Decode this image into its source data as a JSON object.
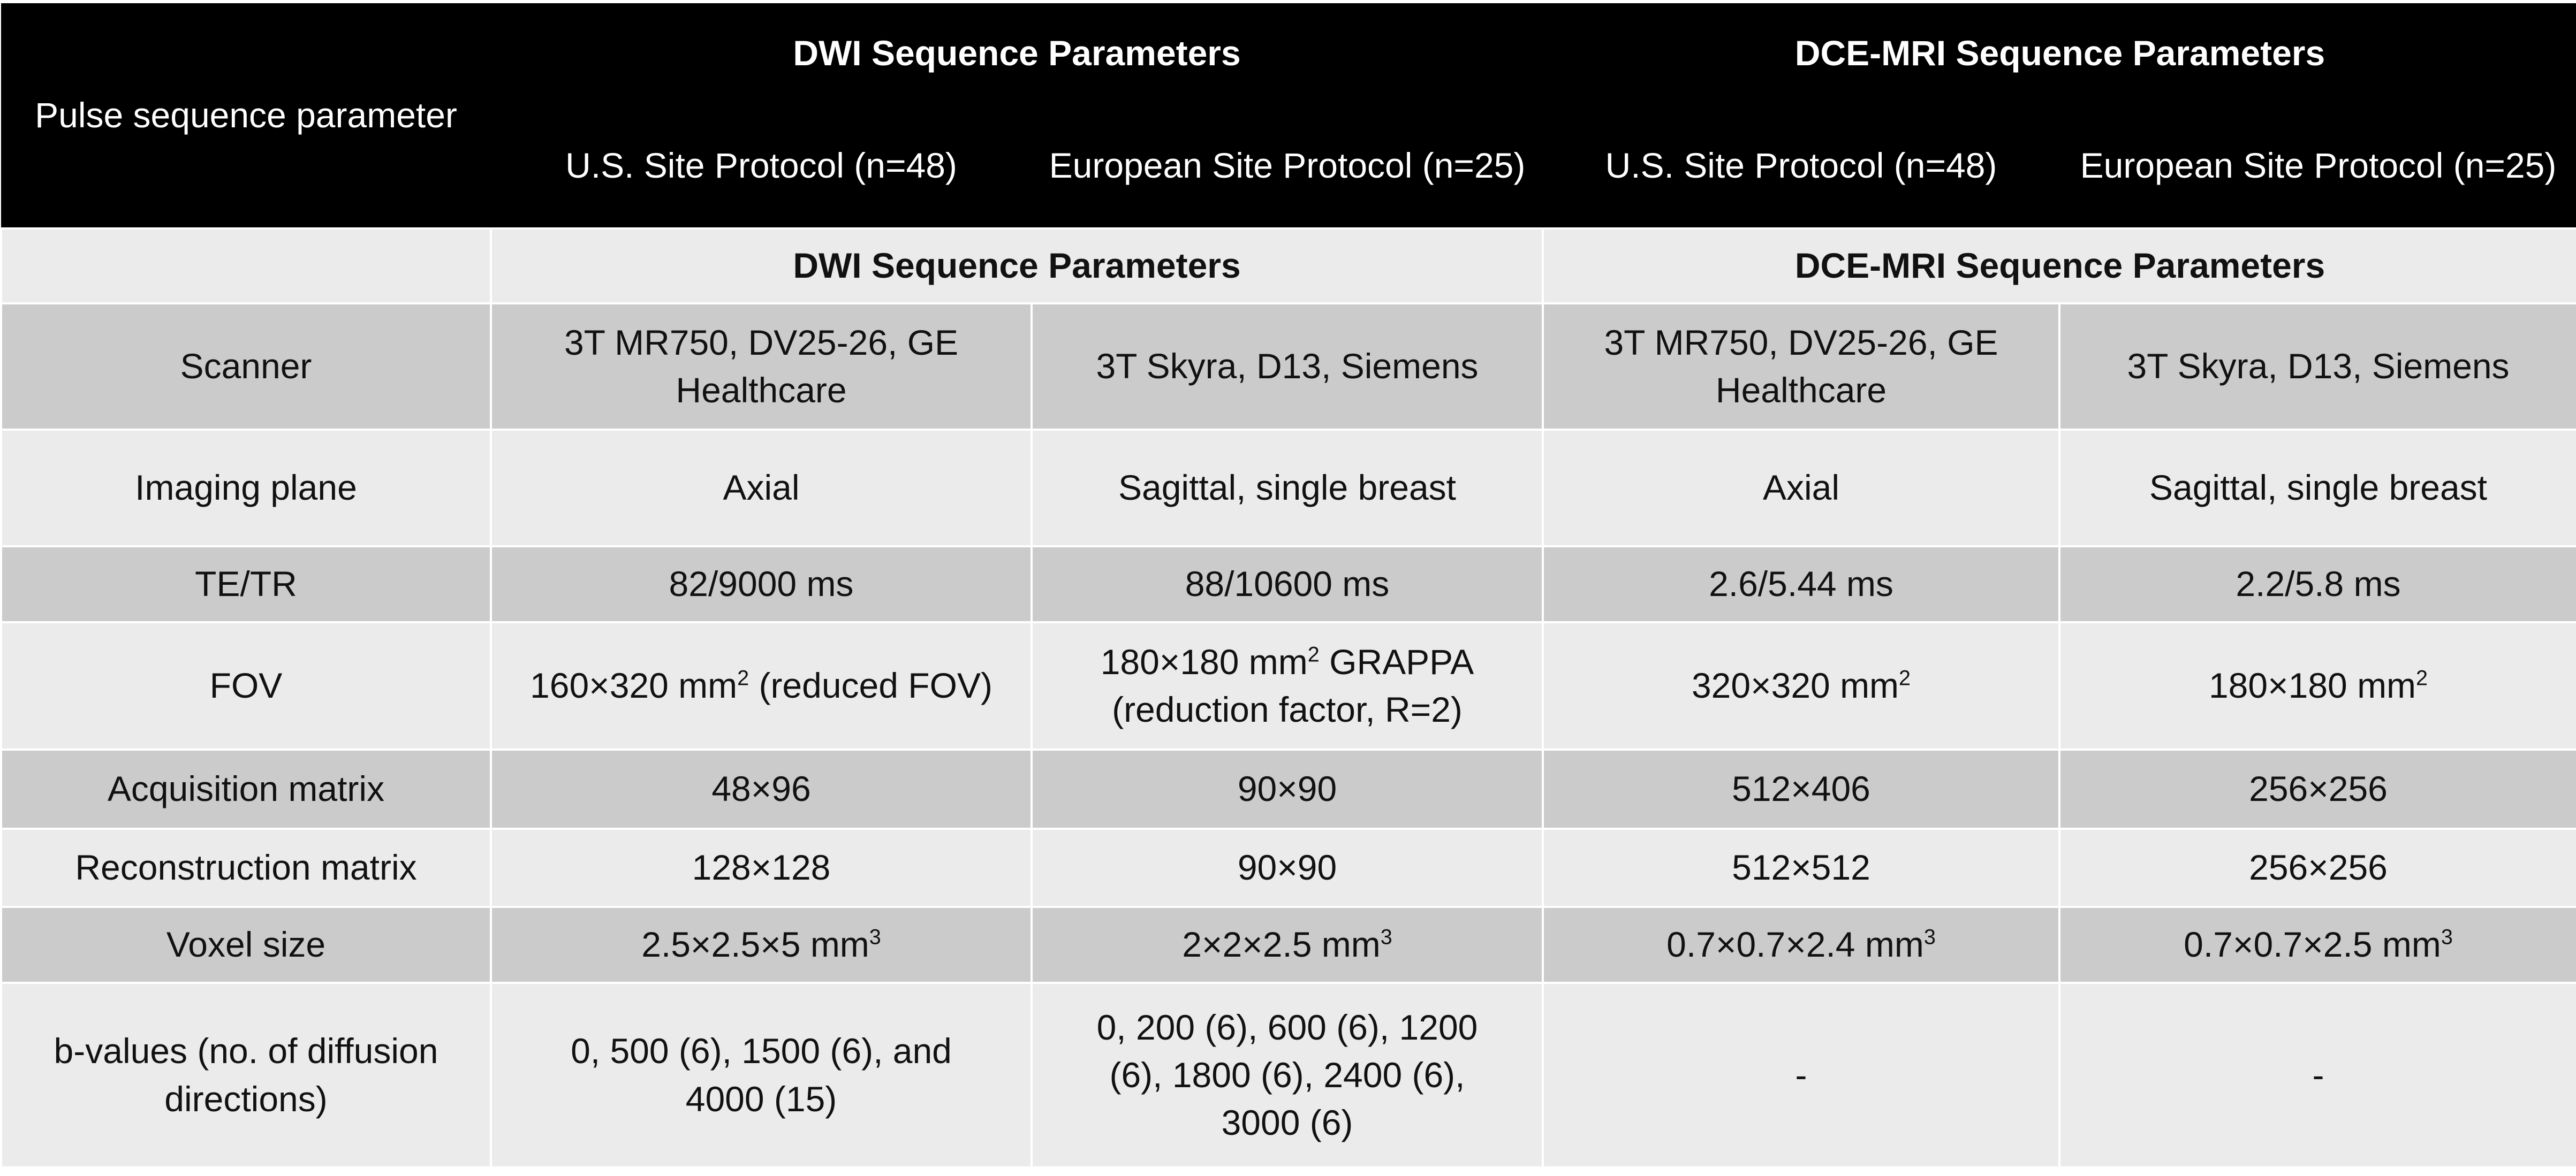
{
  "header": {
    "param_label": "Pulse sequence parameter",
    "dwi_title": "DWI Sequence Parameters",
    "dce_title": "DCE-MRI Sequence Parameters",
    "dwi_us": "U.S. Site Protocol (n=48)",
    "dwi_eu": "European Site Protocol (n=25)",
    "dce_us": "U.S. Site Protocol (n=48)",
    "dce_eu": "European Site Protocol (n=25)"
  },
  "subheader": {
    "dwi_title": "DWI Sequence Parameters",
    "dce_title": "DCE-MRI Sequence Parameters"
  },
  "rows": [
    {
      "param": "Scanner",
      "dwi_us": "3T MR750, DV25-26, GE Healthcare",
      "dwi_eu": "3T Skyra, D13, Siemens",
      "dce_us": "3T MR750, DV25-26, GE Healthcare",
      "dce_eu": "3T Skyra, D13, Siemens"
    },
    {
      "param": "Imaging plane",
      "dwi_us": "Axial",
      "dwi_eu": "Sagittal, single breast",
      "dce_us": "Axial",
      "dce_eu": "Sagittal, single breast"
    },
    {
      "param": "TE/TR",
      "dwi_us": "82/9000 ms",
      "dwi_eu": "88/10600 ms",
      "dce_us": "2.6/5.44 ms",
      "dce_eu": "2.2/5.8 ms"
    },
    {
      "param": "FOV",
      "dwi_us": {
        "pre": "160×320 mm",
        "sup": "2",
        "post": " (reduced FOV)"
      },
      "dwi_eu": {
        "pre": "180×180 mm",
        "sup": "2",
        "post": " GRAPPA (reduction factor, R=2)"
      },
      "dce_us": {
        "pre": "320×320 mm",
        "sup": "2"
      },
      "dce_eu": {
        "pre": "180×180 mm",
        "sup": "2"
      }
    },
    {
      "param": "Acquisition matrix",
      "dwi_us": "48×96",
      "dwi_eu": "90×90",
      "dce_us": "512×406",
      "dce_eu": "256×256"
    },
    {
      "param": "Reconstruction matrix",
      "dwi_us": "128×128",
      "dwi_eu": "90×90",
      "dce_us": "512×512",
      "dce_eu": "256×256"
    },
    {
      "param": "Voxel size",
      "dwi_us": {
        "pre": "2.5×2.5×5 mm",
        "sup": "3"
      },
      "dwi_eu": {
        "pre": "2×2×2.5 mm",
        "sup": "3"
      },
      "dce_us": {
        "pre": "0.7×0.7×2.4 mm",
        "sup": "3"
      },
      "dce_eu": {
        "pre": "0.7×0.7×2.5 mm",
        "sup": "3"
      }
    },
    {
      "param": "b-values (no. of diffusion directions)",
      "dwi_us": "0, 500 (6), 1500 (6), and 4000 (15)",
      "dwi_eu": "0, 200 (6), 600 (6), 1200 (6), 1800 (6), 2400 (6), 3000 (6)",
      "dce_us": "-",
      "dce_eu": "-"
    }
  ]
}
